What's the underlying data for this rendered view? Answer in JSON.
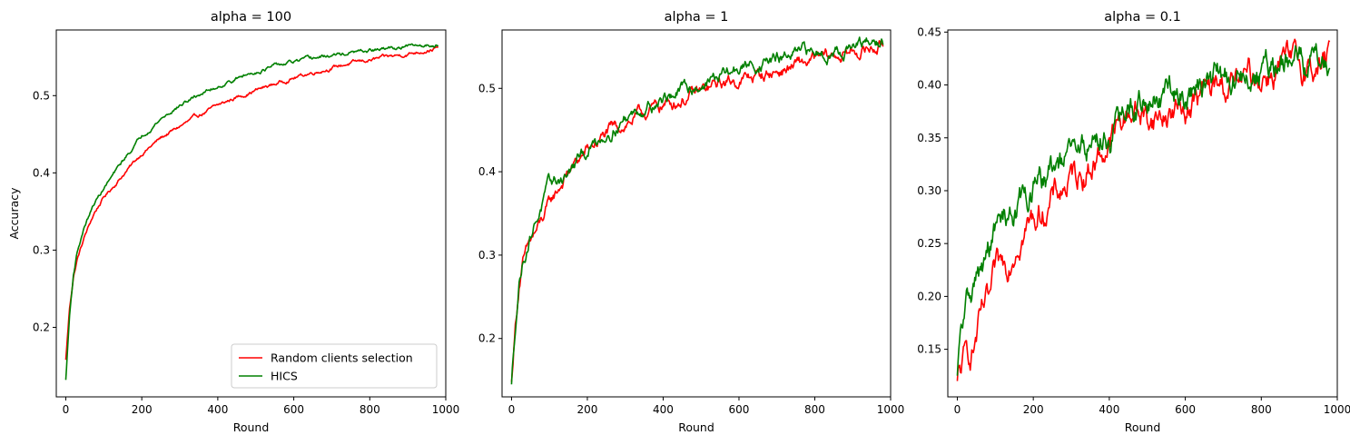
{
  "chart_data": [
    {
      "type": "line",
      "title": "alpha = 100",
      "xlabel": "Round",
      "ylabel": "Accuracy",
      "xlim": [
        -25,
        1000
      ],
      "ylim": [
        0.11,
        0.585
      ],
      "xticks": [
        0,
        200,
        400,
        600,
        800,
        1000
      ],
      "xtick_labels": [
        "0",
        "200",
        "400",
        "600",
        "800",
        "1000"
      ],
      "yticks": [
        0.2,
        0.3,
        0.4,
        0.5
      ],
      "ytick_labels": [
        "0.2",
        "0.3",
        "0.4",
        "0.5"
      ],
      "grid": false,
      "legend": "bottom-right",
      "series": [
        {
          "name": "Random clients selection",
          "color": "#ff0000",
          "noise": 0.0015,
          "x": [
            0,
            10,
            20,
            30,
            50,
            75,
            100,
            150,
            200,
            250,
            300,
            350,
            400,
            450,
            500,
            550,
            600,
            650,
            700,
            750,
            800,
            850,
            900,
            950,
            980
          ],
          "y": [
            0.158,
            0.225,
            0.265,
            0.288,
            0.318,
            0.348,
            0.368,
            0.397,
            0.425,
            0.445,
            0.46,
            0.474,
            0.487,
            0.498,
            0.507,
            0.515,
            0.523,
            0.53,
            0.536,
            0.542,
            0.546,
            0.55,
            0.554,
            0.559,
            0.562
          ]
        },
        {
          "name": "HICS",
          "color": "#008000",
          "noise": 0.0015,
          "x": [
            0,
            10,
            20,
            30,
            50,
            75,
            100,
            150,
            200,
            250,
            300,
            350,
            400,
            450,
            500,
            550,
            600,
            650,
            700,
            750,
            800,
            850,
            900,
            950,
            980
          ],
          "y": [
            0.132,
            0.215,
            0.268,
            0.298,
            0.332,
            0.36,
            0.38,
            0.415,
            0.448,
            0.47,
            0.487,
            0.501,
            0.512,
            0.522,
            0.531,
            0.538,
            0.543,
            0.548,
            0.552,
            0.555,
            0.558,
            0.561,
            0.563,
            0.565,
            0.567
          ]
        }
      ]
    },
    {
      "type": "line",
      "title": "alpha = 1",
      "xlabel": "Round",
      "ylabel": "",
      "xlim": [
        -25,
        1000
      ],
      "ylim": [
        0.13,
        0.57
      ],
      "xticks": [
        0,
        200,
        400,
        600,
        800,
        1000
      ],
      "xtick_labels": [
        "0",
        "200",
        "400",
        "600",
        "800",
        "1000"
      ],
      "yticks": [
        0.2,
        0.3,
        0.4,
        0.5
      ],
      "ytick_labels": [
        "0.2",
        "0.3",
        "0.4",
        "0.5"
      ],
      "grid": false,
      "series": [
        {
          "color": "#ff0000",
          "noise": 0.005,
          "x": [
            0,
            10,
            20,
            30,
            50,
            75,
            100,
            150,
            200,
            250,
            300,
            350,
            400,
            450,
            500,
            550,
            600,
            650,
            700,
            750,
            800,
            850,
            900,
            950,
            980
          ],
          "y": [
            0.148,
            0.215,
            0.265,
            0.29,
            0.315,
            0.335,
            0.36,
            0.4,
            0.425,
            0.445,
            0.458,
            0.47,
            0.48,
            0.487,
            0.495,
            0.505,
            0.51,
            0.515,
            0.52,
            0.527,
            0.533,
            0.538,
            0.543,
            0.548,
            0.552
          ]
        },
        {
          "color": "#008000",
          "noise": 0.005,
          "x": [
            0,
            10,
            20,
            30,
            50,
            75,
            100,
            150,
            200,
            250,
            300,
            350,
            400,
            450,
            500,
            550,
            600,
            650,
            700,
            750,
            800,
            850,
            900,
            950,
            980
          ],
          "y": [
            0.145,
            0.215,
            0.268,
            0.293,
            0.325,
            0.355,
            0.382,
            0.398,
            0.425,
            0.447,
            0.465,
            0.478,
            0.488,
            0.497,
            0.505,
            0.515,
            0.523,
            0.53,
            0.535,
            0.539,
            0.543,
            0.546,
            0.549,
            0.552,
            0.555
          ]
        }
      ]
    },
    {
      "type": "line",
      "title": "alpha = 0.1",
      "xlabel": "Round",
      "ylabel": "",
      "xlim": [
        -25,
        1000
      ],
      "ylim": [
        0.105,
        0.452
      ],
      "xticks": [
        0,
        200,
        400,
        600,
        800,
        1000
      ],
      "xtick_labels": [
        "0",
        "200",
        "400",
        "600",
        "800",
        "1000"
      ],
      "yticks": [
        0.15,
        0.2,
        0.25,
        0.3,
        0.35,
        0.4,
        0.45
      ],
      "ytick_labels": [
        "0.15",
        "0.20",
        "0.25",
        "0.30",
        "0.35",
        "0.40",
        "0.45"
      ],
      "grid": false,
      "series": [
        {
          "color": "#ff0000",
          "noise": 0.009,
          "x": [
            0,
            10,
            25,
            40,
            55,
            70,
            85,
            100,
            130,
            160,
            200,
            230,
            260,
            300,
            350,
            400,
            430,
            460,
            500,
            550,
            600,
            650,
            700,
            750,
            800,
            850,
            900,
            950,
            980
          ],
          "y": [
            0.12,
            0.13,
            0.142,
            0.15,
            0.168,
            0.185,
            0.19,
            0.215,
            0.23,
            0.262,
            0.272,
            0.285,
            0.295,
            0.31,
            0.325,
            0.345,
            0.362,
            0.38,
            0.368,
            0.372,
            0.38,
            0.392,
            0.398,
            0.402,
            0.41,
            0.418,
            0.416,
            0.418,
            0.425
          ]
        },
        {
          "color": "#008000",
          "noise": 0.009,
          "x": [
            0,
            10,
            25,
            40,
            55,
            70,
            85,
            100,
            130,
            160,
            200,
            230,
            260,
            300,
            350,
            400,
            430,
            460,
            500,
            550,
            600,
            650,
            700,
            750,
            800,
            850,
            900,
            950,
            980
          ],
          "y": [
            0.125,
            0.16,
            0.19,
            0.208,
            0.22,
            0.225,
            0.245,
            0.26,
            0.275,
            0.285,
            0.3,
            0.31,
            0.32,
            0.33,
            0.345,
            0.355,
            0.365,
            0.375,
            0.385,
            0.385,
            0.395,
            0.4,
            0.405,
            0.408,
            0.412,
            0.415,
            0.42,
            0.428,
            0.428
          ]
        }
      ]
    }
  ]
}
